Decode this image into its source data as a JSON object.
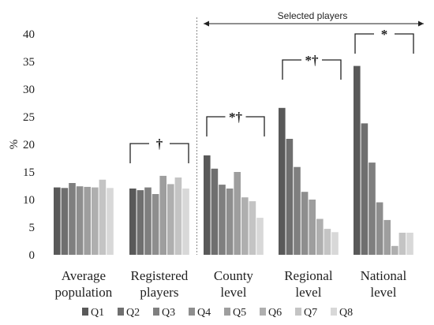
{
  "chart_data": {
    "type": "bar",
    "ylabel": "%",
    "ylim": [
      0,
      40
    ],
    "yticks": [
      0,
      5,
      10,
      15,
      20,
      25,
      30,
      35,
      40
    ],
    "categories": [
      [
        "Average",
        "population"
      ],
      [
        "Registered",
        "players"
      ],
      [
        "County",
        "level"
      ],
      [
        "Regional",
        "level"
      ],
      [
        "National",
        "level"
      ]
    ],
    "series": [
      {
        "name": "Q1",
        "color": "#595959",
        "values": [
          12.2,
          12.0,
          18.0,
          26.6,
          34.2
        ]
      },
      {
        "name": "Q2",
        "color": "#6f6f6f",
        "values": [
          12.1,
          11.7,
          15.6,
          21.0,
          23.8
        ]
      },
      {
        "name": "Q3",
        "color": "#7f7f7f",
        "values": [
          13.0,
          12.2,
          12.7,
          15.9,
          16.7
        ]
      },
      {
        "name": "Q4",
        "color": "#8e8e8e",
        "values": [
          12.4,
          11.0,
          12.0,
          11.4,
          9.5
        ]
      },
      {
        "name": "Q5",
        "color": "#9e9e9e",
        "values": [
          12.3,
          14.3,
          15.0,
          10.0,
          6.3
        ]
      },
      {
        "name": "Q6",
        "color": "#afafaf",
        "values": [
          12.2,
          12.8,
          10.4,
          6.5,
          1.6
        ]
      },
      {
        "name": "Q7",
        "color": "#c4c4c4",
        "values": [
          13.6,
          14.0,
          9.7,
          4.7,
          4.0
        ]
      },
      {
        "name": "Q8",
        "color": "#d8d8d8",
        "values": [
          12.1,
          12.0,
          6.7,
          4.1,
          4.0
        ]
      }
    ],
    "annotations": {
      "group_label": "Selected players",
      "significance": [
        "",
        "†",
        "*†",
        "*†",
        "*"
      ]
    },
    "grid": false,
    "legend_position": "bottom"
  }
}
